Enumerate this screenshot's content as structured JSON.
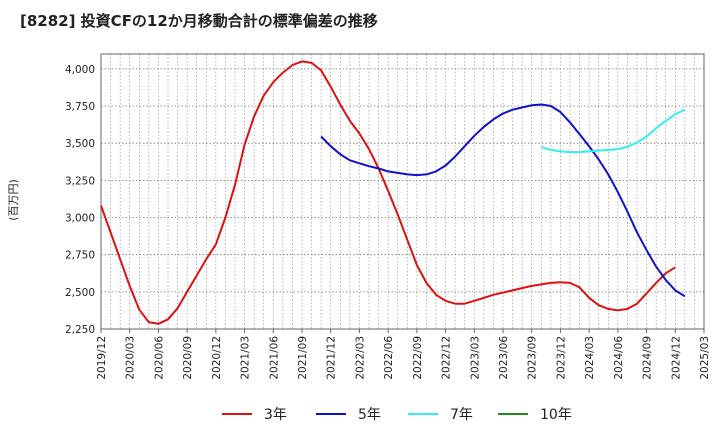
{
  "chart_data": {
    "type": "line",
    "title": "[8282]  投資CFの12か月移動合計の標準偏差の推移",
    "ylabel": "(百万円)",
    "xlabel": "",
    "ylim": [
      2250,
      4100
    ],
    "yticks": [
      2250,
      2500,
      2750,
      3000,
      3250,
      3500,
      3750,
      4000
    ],
    "ytick_labels": [
      "2,250",
      "2,500",
      "2,750",
      "3,000",
      "3,250",
      "3,500",
      "3,750",
      "4,000"
    ],
    "xticks": [
      "2019/12",
      "2020/03",
      "2020/06",
      "2020/09",
      "2020/12",
      "2021/03",
      "2021/06",
      "2021/09",
      "2021/12",
      "2022/03",
      "2022/06",
      "2022/09",
      "2022/12",
      "2023/03",
      "2023/06",
      "2023/09",
      "2023/12",
      "2024/03",
      "2024/06",
      "2024/09",
      "2024/12",
      "2025/03"
    ],
    "grid": true,
    "legend_position": "bottom",
    "series": [
      {
        "name": "3年",
        "color": "#dd1111",
        "start": "2019/12",
        "values": [
          3080,
          2900,
          2720,
          2540,
          2380,
          2295,
          2285,
          2315,
          2390,
          2500,
          2610,
          2720,
          2820,
          3000,
          3220,
          3490,
          3680,
          3820,
          3910,
          3975,
          4025,
          4050,
          4040,
          3990,
          3880,
          3760,
          3650,
          3565,
          3460,
          3330,
          3180,
          3020,
          2850,
          2680,
          2560,
          2480,
          2440,
          2420,
          2420,
          2440,
          2460,
          2480,
          2495,
          2510,
          2525,
          2540,
          2550,
          2560,
          2565,
          2560,
          2530,
          2460,
          2410,
          2385,
          2375,
          2385,
          2420,
          2490,
          2560,
          2625,
          2665
        ]
      },
      {
        "name": "5年",
        "color": "#1111cc",
        "start": "2021/11",
        "values": [
          3545,
          3480,
          3425,
          3385,
          3365,
          3345,
          3330,
          3310,
          3300,
          3290,
          3285,
          3290,
          3310,
          3350,
          3410,
          3480,
          3550,
          3610,
          3660,
          3700,
          3725,
          3740,
          3755,
          3760,
          3750,
          3710,
          3640,
          3560,
          3480,
          3390,
          3290,
          3170,
          3040,
          2900,
          2780,
          2670,
          2580,
          2510,
          2470
        ]
      },
      {
        "name": "7年",
        "color": "#33eeee",
        "start": "2023/10",
        "values": [
          3475,
          3455,
          3445,
          3440,
          3440,
          3445,
          3450,
          3455,
          3460,
          3475,
          3505,
          3545,
          3600,
          3650,
          3695,
          3725
        ]
      },
      {
        "name": "10年",
        "color": "#228822",
        "start": "",
        "values": []
      }
    ]
  }
}
